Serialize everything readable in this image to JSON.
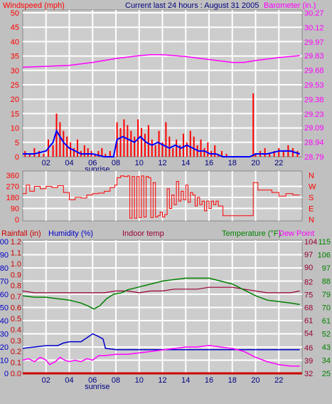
{
  "header": {
    "windspeed_label": "Windspeed (mph)",
    "title": "Current last 24 hours : August 31 2005",
    "barometer_label": "Barometer (in.)"
  },
  "legend_bottom": {
    "rainfall": "Rainfall (in)",
    "humidity": "Humidity (%)",
    "indoor": "Indoor temp",
    "temperature": "Temperature (°F)",
    "dewpoint": "Dew Point"
  },
  "colors": {
    "background": "#c0c0c0",
    "plot_bg": "#cdcdcd",
    "wind": "#ff0000",
    "wind_avg": "#0000ff",
    "barometer": "#ff00ff",
    "direction": "#ff0000",
    "humidity": "#0000cc",
    "temperature": "#008000",
    "dewpoint": "#ff00ff",
    "indoor": "#990033",
    "rain": "#cc0000",
    "axis_text_time": "#000080"
  },
  "sunrise_label": "sunrise",
  "chart_data": [
    {
      "type": "bar",
      "name_panel": "wind-barometer",
      "x_ticks": [
        "02",
        "04",
        "06",
        "08",
        "10",
        "12",
        "14",
        "16",
        "18",
        "20",
        "22"
      ],
      "x_range": [
        0,
        24
      ],
      "sunrise_hour": 6.4,
      "left_axis": {
        "ticks": [
          0,
          5,
          10,
          15,
          20,
          25,
          30,
          35,
          40,
          45,
          50
        ],
        "range": [
          0,
          50
        ]
      },
      "right_axis": {
        "ticks": [
          28.79,
          28.94,
          29.09,
          29.23,
          29.38,
          29.53,
          29.68,
          29.83,
          29.97,
          30.12,
          30.27
        ],
        "range": [
          28.79,
          30.27
        ]
      },
      "gust": [
        [
          0.2,
          2
        ],
        [
          0.6,
          1
        ],
        [
          1.0,
          3
        ],
        [
          1.4,
          2
        ],
        [
          1.8,
          1
        ],
        [
          2.2,
          6
        ],
        [
          2.6,
          4
        ],
        [
          2.9,
          15
        ],
        [
          3.2,
          12
        ],
        [
          3.5,
          9
        ],
        [
          3.8,
          7
        ],
        [
          4.1,
          5
        ],
        [
          4.4,
          3
        ],
        [
          4.7,
          6
        ],
        [
          5.0,
          2
        ],
        [
          5.3,
          4
        ],
        [
          5.6,
          3
        ],
        [
          5.9,
          2
        ],
        [
          6.2,
          1
        ],
        [
          6.5,
          2
        ],
        [
          6.8,
          3
        ],
        [
          7.1,
          1
        ],
        [
          7.5,
          2
        ],
        [
          7.8,
          0
        ],
        [
          8.1,
          12
        ],
        [
          8.4,
          10
        ],
        [
          8.7,
          13
        ],
        [
          9.0,
          11
        ],
        [
          9.3,
          9
        ],
        [
          9.6,
          7
        ],
        [
          9.9,
          13
        ],
        [
          10.2,
          10
        ],
        [
          10.5,
          8
        ],
        [
          10.8,
          11
        ],
        [
          11.1,
          6
        ],
        [
          11.4,
          4
        ],
        [
          11.7,
          9
        ],
        [
          12.0,
          5
        ],
        [
          12.3,
          12
        ],
        [
          12.6,
          7
        ],
        [
          12.9,
          3
        ],
        [
          13.2,
          6
        ],
        [
          13.5,
          4
        ],
        [
          13.8,
          8
        ],
        [
          14.1,
          5
        ],
        [
          14.4,
          9
        ],
        [
          14.7,
          7
        ],
        [
          15.0,
          4
        ],
        [
          15.3,
          6
        ],
        [
          15.6,
          3
        ],
        [
          15.9,
          5
        ],
        [
          16.2,
          2
        ],
        [
          16.5,
          4
        ],
        [
          16.8,
          1
        ],
        [
          17.1,
          2
        ],
        [
          17.5,
          1
        ],
        [
          17.9,
          0
        ],
        [
          18.5,
          0
        ],
        [
          19.2,
          0
        ],
        [
          19.8,
          22
        ],
        [
          20.0,
          1
        ],
        [
          20.4,
          2
        ],
        [
          20.8,
          3
        ],
        [
          21.2,
          1
        ],
        [
          21.6,
          2
        ],
        [
          22.0,
          3
        ],
        [
          22.4,
          2
        ],
        [
          22.8,
          4
        ],
        [
          23.2,
          3
        ],
        [
          23.6,
          2
        ]
      ],
      "average": [
        [
          0.0,
          1
        ],
        [
          1.0,
          1
        ],
        [
          2.0,
          2
        ],
        [
          2.6,
          5
        ],
        [
          2.9,
          9
        ],
        [
          3.2,
          7
        ],
        [
          3.5,
          5
        ],
        [
          4.0,
          3
        ],
        [
          4.5,
          2
        ],
        [
          5.0,
          1
        ],
        [
          6.0,
          1
        ],
        [
          7.0,
          0
        ],
        [
          7.8,
          0
        ],
        [
          8.1,
          6
        ],
        [
          8.6,
          7
        ],
        [
          9.1,
          6
        ],
        [
          9.6,
          5
        ],
        [
          10.1,
          7
        ],
        [
          10.6,
          5
        ],
        [
          11.1,
          4
        ],
        [
          11.6,
          5
        ],
        [
          12.1,
          4
        ],
        [
          12.6,
          3
        ],
        [
          13.1,
          4
        ],
        [
          13.6,
          3
        ],
        [
          14.1,
          4
        ],
        [
          14.6,
          3
        ],
        [
          15.1,
          2
        ],
        [
          15.6,
          2
        ],
        [
          16.1,
          1
        ],
        [
          16.6,
          1
        ],
        [
          17.2,
          0
        ],
        [
          19.5,
          0
        ],
        [
          20.0,
          1
        ],
        [
          21.0,
          1
        ],
        [
          22.0,
          2
        ],
        [
          23.0,
          2
        ],
        [
          23.8,
          1
        ]
      ],
      "barometer": [
        [
          0.0,
          29.71
        ],
        [
          2.0,
          29.72
        ],
        [
          4.0,
          29.73
        ],
        [
          6.0,
          29.76
        ],
        [
          8.0,
          29.8
        ],
        [
          10.0,
          29.83
        ],
        [
          11.0,
          29.84
        ],
        [
          12.0,
          29.84
        ],
        [
          14.0,
          29.82
        ],
        [
          16.0,
          29.79
        ],
        [
          18.0,
          29.76
        ],
        [
          19.0,
          29.76
        ],
        [
          20.0,
          29.78
        ],
        [
          22.0,
          29.81
        ],
        [
          23.8,
          29.83
        ]
      ]
    },
    {
      "type": "line",
      "name_panel": "wind-direction",
      "x_range": [
        0,
        24
      ],
      "left_axis": {
        "ticks": [
          0,
          90,
          180,
          270,
          360
        ],
        "range": [
          0,
          360
        ]
      },
      "right_axis_labels": [
        "N",
        "W",
        "S",
        "E",
        "N"
      ],
      "direction": [
        [
          0.0,
          210
        ],
        [
          0.3,
          280
        ],
        [
          0.6,
          230
        ],
        [
          1.0,
          270
        ],
        [
          1.5,
          250
        ],
        [
          2.0,
          270
        ],
        [
          2.5,
          260
        ],
        [
          3.0,
          275
        ],
        [
          3.5,
          220
        ],
        [
          4.0,
          160
        ],
        [
          4.5,
          180
        ],
        [
          5.0,
          175
        ],
        [
          5.5,
          200
        ],
        [
          6.0,
          210
        ],
        [
          6.5,
          215
        ],
        [
          7.0,
          230
        ],
        [
          7.5,
          260
        ],
        [
          7.9,
          280
        ],
        [
          8.1,
          340
        ],
        [
          8.4,
          355
        ],
        [
          8.7,
          350
        ],
        [
          9.0,
          355
        ],
        [
          9.2,
          10
        ],
        [
          9.4,
          350
        ],
        [
          9.6,
          10
        ],
        [
          9.8,
          350
        ],
        [
          10.0,
          15
        ],
        [
          10.2,
          355
        ],
        [
          10.4,
          20
        ],
        [
          10.6,
          350
        ],
        [
          10.8,
          340
        ],
        [
          11.0,
          15
        ],
        [
          11.2,
          300
        ],
        [
          11.4,
          20
        ],
        [
          11.6,
          30
        ],
        [
          11.8,
          60
        ],
        [
          12.0,
          20
        ],
        [
          12.2,
          40
        ],
        [
          12.4,
          250
        ],
        [
          12.6,
          90
        ],
        [
          12.8,
          200
        ],
        [
          13.0,
          120
        ],
        [
          13.2,
          310
        ],
        [
          13.4,
          150
        ],
        [
          13.6,
          230
        ],
        [
          13.8,
          160
        ],
        [
          14.0,
          280
        ],
        [
          14.2,
          140
        ],
        [
          14.4,
          220
        ],
        [
          14.6,
          200
        ],
        [
          14.8,
          110
        ],
        [
          15.0,
          180
        ],
        [
          15.2,
          120
        ],
        [
          15.4,
          150
        ],
        [
          15.6,
          70
        ],
        [
          15.8,
          150
        ],
        [
          16.0,
          90
        ],
        [
          16.2,
          150
        ],
        [
          16.4,
          120
        ],
        [
          16.6,
          150
        ],
        [
          16.8,
          110
        ],
        [
          17.0,
          110
        ],
        [
          17.2,
          30
        ],
        [
          17.6,
          30
        ],
        [
          18.4,
          30
        ],
        [
          19.0,
          30
        ],
        [
          19.6,
          30
        ],
        [
          19.8,
          300
        ],
        [
          20.2,
          240
        ],
        [
          20.8,
          240
        ],
        [
          21.4,
          220
        ],
        [
          22.0,
          190
        ],
        [
          22.6,
          210
        ],
        [
          23.2,
          200
        ],
        [
          23.8,
          200
        ]
      ]
    },
    {
      "type": "line",
      "name_panel": "temperature-humidity-rain",
      "x_ticks": [
        "02",
        "04",
        "06",
        "08",
        "10",
        "12",
        "14",
        "16",
        "18",
        "20",
        "22"
      ],
      "x_range": [
        0,
        24
      ],
      "sunrise_hour": 6.4,
      "humidity_axis": {
        "ticks": [
          0,
          10,
          20,
          30,
          40,
          50,
          60,
          70,
          80,
          90,
          100
        ],
        "range": [
          0,
          100
        ]
      },
      "rainfall_axis": {
        "ticks": [
          0.0,
          0.1,
          0.2,
          0.3,
          0.4,
          0.5,
          0.6,
          0.7,
          0.8,
          0.9,
          1.0,
          1.1,
          1.2
        ],
        "range": [
          0,
          1.2
        ]
      },
      "indoor_axis": {
        "ticks": [
          32,
          39,
          46,
          54,
          61,
          68,
          75,
          82,
          90,
          97,
          104
        ],
        "range": [
          32,
          104
        ]
      },
      "temperature_axis": {
        "ticks": [
          25,
          34,
          43,
          52,
          61,
          70,
          79,
          88,
          97,
          106,
          115
        ],
        "range": [
          25,
          115
        ]
      },
      "temperature": [
        [
          0.0,
          78
        ],
        [
          1.0,
          77
        ],
        [
          2.0,
          77
        ],
        [
          3.0,
          76
        ],
        [
          4.0,
          75
        ],
        [
          5.0,
          73
        ],
        [
          5.6,
          71
        ],
        [
          6.1,
          69
        ],
        [
          6.6,
          71
        ],
        [
          7.2,
          76
        ],
        [
          7.8,
          79
        ],
        [
          8.5,
          80
        ],
        [
          9.0,
          82
        ],
        [
          10.0,
          84
        ],
        [
          11.0,
          86
        ],
        [
          12.0,
          88
        ],
        [
          13.0,
          89
        ],
        [
          14.0,
          90
        ],
        [
          15.0,
          90
        ],
        [
          16.0,
          90
        ],
        [
          17.0,
          88
        ],
        [
          18.0,
          86
        ],
        [
          19.0,
          82
        ],
        [
          20.0,
          78
        ],
        [
          21.0,
          75
        ],
        [
          22.0,
          74
        ],
        [
          23.0,
          73
        ],
        [
          23.8,
          72
        ]
      ],
      "dewpoint": [
        [
          0.0,
          34
        ],
        [
          0.5,
          35
        ],
        [
          1.0,
          33
        ],
        [
          1.5,
          36
        ],
        [
          2.0,
          34
        ],
        [
          2.3,
          31
        ],
        [
          2.8,
          33
        ],
        [
          3.2,
          36
        ],
        [
          3.6,
          34
        ],
        [
          4.0,
          33
        ],
        [
          4.5,
          34
        ],
        [
          5.0,
          33
        ],
        [
          5.5,
          35
        ],
        [
          6.0,
          34
        ],
        [
          6.5,
          37
        ],
        [
          7.0,
          37
        ],
        [
          8.0,
          38
        ],
        [
          9.0,
          38
        ],
        [
          10.0,
          39
        ],
        [
          11.0,
          40
        ],
        [
          12.0,
          41
        ],
        [
          13.0,
          42
        ],
        [
          14.0,
          43
        ],
        [
          15.0,
          43
        ],
        [
          16.0,
          44
        ],
        [
          17.0,
          43
        ],
        [
          18.0,
          42
        ],
        [
          19.0,
          40
        ],
        [
          20.0,
          36
        ],
        [
          21.0,
          33
        ],
        [
          22.0,
          31
        ],
        [
          23.0,
          30
        ],
        [
          23.8,
          30
        ]
      ],
      "humidity": [
        [
          0.0,
          19
        ],
        [
          1.0,
          20
        ],
        [
          2.0,
          21
        ],
        [
          3.0,
          21
        ],
        [
          3.5,
          23
        ],
        [
          4.0,
          24
        ],
        [
          5.0,
          24
        ],
        [
          5.5,
          27
        ],
        [
          6.0,
          30
        ],
        [
          6.5,
          28
        ],
        [
          6.9,
          26
        ],
        [
          7.1,
          19
        ],
        [
          8.0,
          18
        ],
        [
          23.8,
          18
        ]
      ],
      "indoor": [
        [
          0.0,
          77
        ],
        [
          1.0,
          76
        ],
        [
          2.0,
          76
        ],
        [
          6.0,
          76
        ],
        [
          7.0,
          76
        ],
        [
          8.0,
          77
        ],
        [
          9.0,
          77
        ],
        [
          10.0,
          76
        ],
        [
          11.0,
          77
        ],
        [
          12.0,
          77
        ],
        [
          13.0,
          78
        ],
        [
          14.0,
          78
        ],
        [
          15.0,
          78
        ],
        [
          16.0,
          79
        ],
        [
          17.0,
          79
        ],
        [
          18.0,
          79
        ],
        [
          19.0,
          78
        ],
        [
          20.0,
          77
        ],
        [
          21.0,
          76
        ],
        [
          22.0,
          76
        ],
        [
          23.0,
          76
        ],
        [
          23.8,
          77
        ]
      ],
      "rain": 0.0
    }
  ]
}
